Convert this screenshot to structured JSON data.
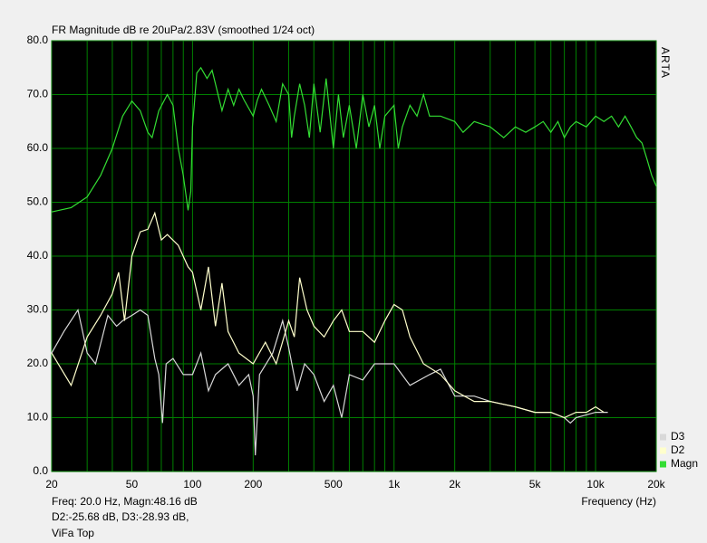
{
  "chart_data": {
    "type": "line",
    "title": "FR Magnitude dB re 20uPa/2.83V (smoothed 1/24 oct)",
    "side_label": "ARTA",
    "x_label": "Frequency (Hz)",
    "annotations": [
      "Freq: 20.0 Hz, Magn:48.16 dB",
      "D2:-25.68 dB, D3:-28.93 dB,",
      "ViFa Top"
    ],
    "x_scale": "log",
    "xlim": [
      20,
      20000
    ],
    "xticks": [
      20,
      50,
      100,
      200,
      500,
      {
        "value": 1000,
        "label": "1k"
      },
      {
        "value": 2000,
        "label": "2k"
      },
      {
        "value": 5000,
        "label": "5k"
      },
      {
        "value": 10000,
        "label": "10k"
      },
      {
        "value": 20000,
        "label": "20k"
      }
    ],
    "x_minor_gridlines": [
      30,
      40,
      60,
      70,
      80,
      90,
      300,
      400,
      600,
      700,
      800,
      900,
      3000,
      4000,
      6000,
      7000,
      8000,
      9000
    ],
    "ylim": [
      0,
      80
    ],
    "yticks": [
      {
        "value": 0,
        "label": "0.0"
      },
      {
        "value": 10,
        "label": "10.0"
      },
      {
        "value": 20,
        "label": "20.0"
      },
      {
        "value": 30,
        "label": "30.0"
      },
      {
        "value": 40,
        "label": "40.0"
      },
      {
        "value": 50,
        "label": "50.0"
      },
      {
        "value": 60,
        "label": "60.0"
      },
      {
        "value": 70,
        "label": "70.0"
      },
      {
        "value": 80,
        "label": "80.0"
      }
    ],
    "grid": true,
    "grid_color": "#008000",
    "plot_background": "#000000",
    "legend": "bottom-right",
    "series": [
      {
        "name": "Magn",
        "color": "#33dd33",
        "x": [
          20,
          25,
          30,
          35,
          40,
          45,
          50,
          55,
          60,
          63,
          68,
          75,
          80,
          85,
          90,
          95,
          98,
          100,
          105,
          110,
          118,
          125,
          130,
          140,
          150,
          160,
          170,
          180,
          200,
          210,
          220,
          240,
          260,
          280,
          300,
          310,
          320,
          340,
          360,
          380,
          400,
          430,
          460,
          500,
          530,
          560,
          600,
          650,
          700,
          750,
          800,
          850,
          900,
          1000,
          1050,
          1100,
          1200,
          1300,
          1400,
          1500,
          1700,
          2000,
          2200,
          2500,
          3000,
          3500,
          4000,
          4500,
          5000,
          5500,
          6000,
          6500,
          7000,
          7500,
          8000,
          9000,
          10000,
          11000,
          12000,
          13000,
          14000,
          15000,
          16000,
          17000,
          18000,
          19000,
          20000
        ],
        "values": [
          48.2,
          49,
          51,
          55,
          60,
          66,
          68.8,
          67,
          63,
          62,
          67,
          70,
          68,
          60,
          55,
          48.5,
          52,
          64,
          74,
          75,
          73,
          74.5,
          72,
          67,
          71,
          68,
          71,
          69,
          66,
          69,
          71,
          68,
          65,
          72,
          70,
          62,
          66,
          72,
          68,
          62,
          72,
          63,
          73,
          60,
          70,
          62,
          68,
          60,
          70,
          64,
          68,
          60,
          66,
          68,
          60,
          64,
          68,
          66,
          70,
          66,
          66,
          65,
          63,
          65,
          64,
          62,
          64,
          63,
          64,
          65,
          63,
          65,
          62,
          64,
          65,
          64,
          66,
          65,
          66,
          64,
          66,
          64,
          62,
          61,
          58,
          55,
          53
        ]
      },
      {
        "name": "D2",
        "color": "#ffffcc",
        "x": [
          20,
          25,
          30,
          35,
          40,
          43,
          46,
          50,
          55,
          60,
          65,
          70,
          75,
          85,
          95,
          100,
          110,
          120,
          130,
          140,
          150,
          170,
          200,
          230,
          260,
          300,
          320,
          340,
          370,
          400,
          450,
          500,
          550,
          600,
          700,
          800,
          900,
          1000,
          1100,
          1200,
          1400,
          1700,
          2000,
          2500,
          3000,
          4000,
          5000,
          6000,
          7000,
          8000,
          9000,
          10000,
          11000
        ],
        "values": [
          22,
          16,
          25,
          29,
          33,
          37,
          28,
          40,
          44.5,
          45,
          48,
          43,
          44,
          42,
          38,
          37,
          30,
          38,
          27,
          35,
          26,
          22,
          20,
          24,
          20,
          28,
          25,
          36,
          30,
          27,
          25,
          28,
          30,
          26,
          26,
          24,
          28,
          31,
          30,
          25,
          20,
          18,
          15,
          13,
          13,
          12,
          11,
          11,
          10,
          11,
          11,
          12,
          11
        ]
      },
      {
        "name": "D3",
        "color": "#d8d8d8",
        "x": [
          20,
          23,
          27,
          30,
          33,
          38,
          42,
          45,
          50,
          55,
          60,
          65,
          68,
          71,
          74,
          80,
          90,
          100,
          110,
          120,
          130,
          150,
          170,
          190,
          200,
          205,
          215,
          250,
          280,
          300,
          330,
          360,
          400,
          450,
          500,
          550,
          600,
          700,
          800,
          1000,
          1200,
          1500,
          1700,
          2000,
          2500,
          3000,
          4000,
          5000,
          6000,
          7000,
          7500,
          8000,
          10000,
          11500
        ],
        "values": [
          22,
          26,
          30,
          22,
          20,
          29,
          27,
          28,
          29,
          30,
          29,
          21,
          18,
          9,
          20,
          21,
          18,
          18,
          22,
          15,
          18,
          20,
          16,
          18,
          14,
          3,
          18,
          22,
          28,
          23,
          15,
          20,
          18,
          13,
          16,
          10,
          18,
          17,
          20,
          20,
          16,
          18,
          19,
          14,
          14,
          13,
          12,
          11,
          11,
          10,
          9,
          10,
          11,
          11
        ]
      }
    ]
  }
}
